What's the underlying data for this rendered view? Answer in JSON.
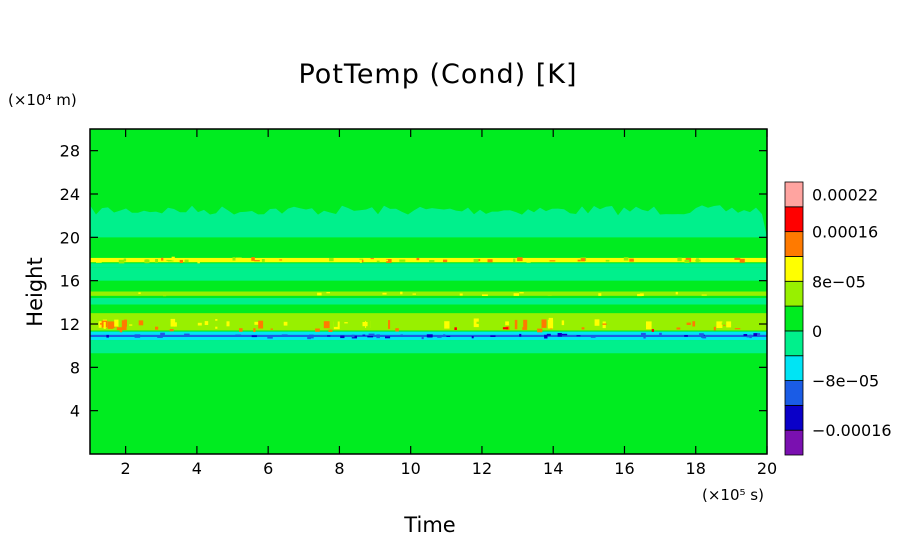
{
  "chart_data": {
    "type": "heatmap",
    "title": "PotTemp (Cond) [K]",
    "xlabel": "Time",
    "ylabel": "Height",
    "x_unit": "(×10⁵ s)",
    "y_unit": "(×10⁴ m)",
    "xlim": [
      1,
      20
    ],
    "ylim": [
      0,
      30
    ],
    "xticks": [
      2,
      4,
      6,
      8,
      10,
      12,
      14,
      16,
      18,
      20
    ],
    "yticks": [
      4,
      8,
      12,
      16,
      20,
      24,
      28
    ],
    "colorbar": {
      "levels": [
        -0.0002,
        -0.00016,
        -0.00012,
        -8e-05,
        -4e-05,
        0,
        4e-05,
        8e-05,
        0.00012,
        0.00016,
        0.0002,
        0.00024
      ],
      "colors": [
        "#7a10b0",
        "#0a00c8",
        "#1a5ce6",
        "#00e4f4",
        "#00f08c",
        "#00ec20",
        "#98f000",
        "#ffff00",
        "#ff7a00",
        "#ff0000",
        "#ffa4a0"
      ],
      "labels": [
        {
          "value": -0.00016,
          "text": "−0.00016"
        },
        {
          "value": -8e-05,
          "text": "−8e−05"
        },
        {
          "value": 0,
          "text": "0"
        },
        {
          "value": 8e-05,
          "text": "8e−05"
        },
        {
          "value": 0.00016,
          "text": "0.00016"
        },
        {
          "value": 0.00022,
          "text": "0.00022"
        }
      ]
    },
    "bands": [
      {
        "y": [
          20.0,
          22.5
        ],
        "level": "0.00002",
        "color": "#00f08c",
        "note": "irregular upper edge"
      },
      {
        "y": [
          17.2,
          17.6
        ],
        "level": "0.00002",
        "color": "#00f08c"
      },
      {
        "y": [
          16.0,
          17.2
        ],
        "level": "-0.00002",
        "color": "#00f08c"
      },
      {
        "y": [
          17.7,
          18.1
        ],
        "level": "0.00012",
        "color": "#ffff00"
      },
      {
        "y": [
          14.6,
          15.0
        ],
        "level": "0.00006",
        "color": "#98f000"
      },
      {
        "y": [
          13.8,
          14.4
        ],
        "level": "-0.00002",
        "color": "#00f08c"
      },
      {
        "y": [
          11.4,
          13.0
        ],
        "level": "0.00006",
        "color": "#98f000"
      },
      {
        "y": [
          10.5,
          11.3
        ],
        "level": "-0.00006",
        "color": "#00e4f4"
      },
      {
        "y": [
          10.8,
          11.0
        ],
        "level": "-0.00014",
        "color": "#1a5ce6"
      },
      {
        "y": [
          9.3,
          10.5
        ],
        "level": "-0.00002",
        "color": "#00f08c"
      }
    ]
  }
}
